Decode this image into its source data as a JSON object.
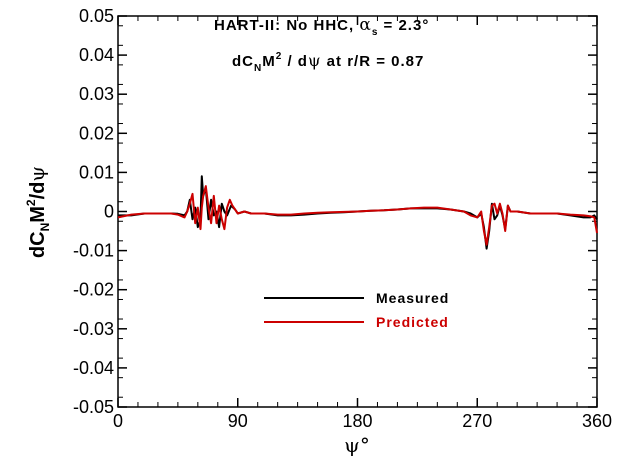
{
  "chart_data": {
    "type": "line",
    "title_lines": [
      {
        "prefix": "HART-II: No HHC, ",
        "symbol": "α",
        "subscript": "s",
        "suffix": " = 2.3°"
      },
      {
        "prefix": "dC",
        "subscript": "N",
        "mid": "M",
        "superscript": "2",
        "suffix": " / dψ  at r/R = 0.87"
      }
    ],
    "ylabel": {
      "prefix": "dC",
      "subscript": "N",
      "mid": "M",
      "superscript": "2",
      "suffix": "/dψ"
    },
    "xlabel": "ψ°",
    "xlim": [
      0,
      360
    ],
    "ylim": [
      -0.05,
      0.05
    ],
    "xticks": [
      0,
      90,
      180,
      270,
      360
    ],
    "xtick_labels": [
      "0",
      "90",
      "180",
      "270",
      "360"
    ],
    "yticks": [
      0.05,
      0.04,
      0.03,
      0.02,
      0.01,
      0,
      -0.01,
      -0.02,
      -0.03,
      -0.04,
      -0.05
    ],
    "ytick_labels": [
      "0.05",
      "0.04",
      "0.03",
      "0.02",
      "0.01",
      "0",
      "-0.01",
      "-0.02",
      "-0.03",
      "-0.04",
      "-0.05"
    ],
    "grid": false,
    "legend_position": "center",
    "series": [
      {
        "name": "Measured",
        "color": "#000000",
        "points": [
          [
            0,
            -0.001
          ],
          [
            10,
            -0.001
          ],
          [
            20,
            -0.0005
          ],
          [
            30,
            -0.0005
          ],
          [
            40,
            -0.0005
          ],
          [
            45,
            -0.0006
          ],
          [
            50,
            -0.001
          ],
          [
            52,
            0
          ],
          [
            54,
            0.003
          ],
          [
            56,
            -0.002
          ],
          [
            58,
            0.001
          ],
          [
            60,
            -0.004
          ],
          [
            62,
            -0.002
          ],
          [
            63,
            0.009
          ],
          [
            64,
            0.004
          ],
          [
            66,
            0.006
          ],
          [
            68,
            -0.002
          ],
          [
            70,
            0.003
          ],
          [
            72,
            -0.001
          ],
          [
            74,
            0
          ],
          [
            76,
            -0.004
          ],
          [
            78,
            0.002
          ],
          [
            80,
            0
          ],
          [
            82,
            -0.001
          ],
          [
            85,
            0.0015
          ],
          [
            88,
            0.0005
          ],
          [
            90,
            -0.0005
          ],
          [
            95,
            0
          ],
          [
            100,
            -0.0005
          ],
          [
            110,
            -0.0005
          ],
          [
            120,
            -0.001
          ],
          [
            130,
            -0.001
          ],
          [
            140,
            -0.0008
          ],
          [
            150,
            -0.0005
          ],
          [
            160,
            -0.0003
          ],
          [
            170,
            -0.0002
          ],
          [
            180,
            0
          ],
          [
            190,
            0.0002
          ],
          [
            200,
            0.0003
          ],
          [
            210,
            0.0005
          ],
          [
            220,
            0.0008
          ],
          [
            230,
            0.0008
          ],
          [
            240,
            0.0008
          ],
          [
            250,
            0.0005
          ],
          [
            260,
            0
          ],
          [
            265,
            -0.0005
          ],
          [
            270,
            -0.0015
          ],
          [
            273,
            -0.0005
          ],
          [
            275,
            -0.004
          ],
          [
            277,
            -0.0095
          ],
          [
            279,
            -0.005
          ],
          [
            281,
            0.002
          ],
          [
            283,
            -0.002
          ],
          [
            285,
            -0.001
          ],
          [
            287,
            0.0015
          ],
          [
            289,
            -0.001
          ],
          [
            291,
            -0.0045
          ],
          [
            293,
            0.0015
          ],
          [
            295,
            0
          ],
          [
            300,
            0
          ],
          [
            310,
            -0.0005
          ],
          [
            320,
            -0.0005
          ],
          [
            330,
            -0.0005
          ],
          [
            340,
            -0.001
          ],
          [
            350,
            -0.0015
          ],
          [
            355,
            -0.0015
          ],
          [
            358,
            -0.001
          ],
          [
            360,
            -0.002
          ]
        ]
      },
      {
        "name": "Predicted",
        "color": "#cc0000",
        "points": [
          [
            0,
            -0.0015
          ],
          [
            10,
            -0.0008
          ],
          [
            20,
            -0.0005
          ],
          [
            30,
            -0.0005
          ],
          [
            40,
            -0.0005
          ],
          [
            45,
            -0.0008
          ],
          [
            50,
            -0.0015
          ],
          [
            52,
            0
          ],
          [
            54,
            0.002
          ],
          [
            56,
            0.0045
          ],
          [
            58,
            -0.003
          ],
          [
            60,
            0.001
          ],
          [
            62,
            -0.0045
          ],
          [
            63,
            0.001
          ],
          [
            64,
            0.004
          ],
          [
            66,
            0.0065
          ],
          [
            68,
            0.001
          ],
          [
            70,
            -0.003
          ],
          [
            72,
            0.004
          ],
          [
            74,
            -0.003
          ],
          [
            76,
            0.0015
          ],
          [
            78,
            -0.002
          ],
          [
            80,
            -0.0045
          ],
          [
            82,
            0.001
          ],
          [
            84,
            0.003
          ],
          [
            86,
            0.0015
          ],
          [
            90,
            -0.0005
          ],
          [
            95,
            0
          ],
          [
            100,
            -0.0005
          ],
          [
            110,
            -0.0005
          ],
          [
            120,
            -0.0008
          ],
          [
            130,
            -0.0008
          ],
          [
            140,
            -0.0005
          ],
          [
            150,
            -0.0003
          ],
          [
            160,
            -0.0002
          ],
          [
            170,
            -0.0001
          ],
          [
            180,
            0
          ],
          [
            190,
            0.0002
          ],
          [
            200,
            0.0003
          ],
          [
            210,
            0.0005
          ],
          [
            220,
            0.0008
          ],
          [
            230,
            0.001
          ],
          [
            240,
            0.001
          ],
          [
            250,
            0.0005
          ],
          [
            260,
            0
          ],
          [
            265,
            -0.001
          ],
          [
            270,
            -0.0015
          ],
          [
            273,
            0
          ],
          [
            275,
            -0.005
          ],
          [
            277,
            -0.0085
          ],
          [
            279,
            -0.004
          ],
          [
            281,
            0.0015
          ],
          [
            283,
            0.002
          ],
          [
            285,
            -0.0005
          ],
          [
            287,
            0.002
          ],
          [
            289,
            -0.0005
          ],
          [
            291,
            -0.005
          ],
          [
            293,
            0.0015
          ],
          [
            295,
            0
          ],
          [
            300,
            0
          ],
          [
            310,
            -0.0005
          ],
          [
            320,
            -0.0005
          ],
          [
            330,
            -0.0005
          ],
          [
            340,
            -0.0008
          ],
          [
            350,
            -0.001
          ],
          [
            355,
            -0.0012
          ],
          [
            358,
            -0.0015
          ],
          [
            360,
            -0.0055
          ]
        ]
      }
    ]
  }
}
